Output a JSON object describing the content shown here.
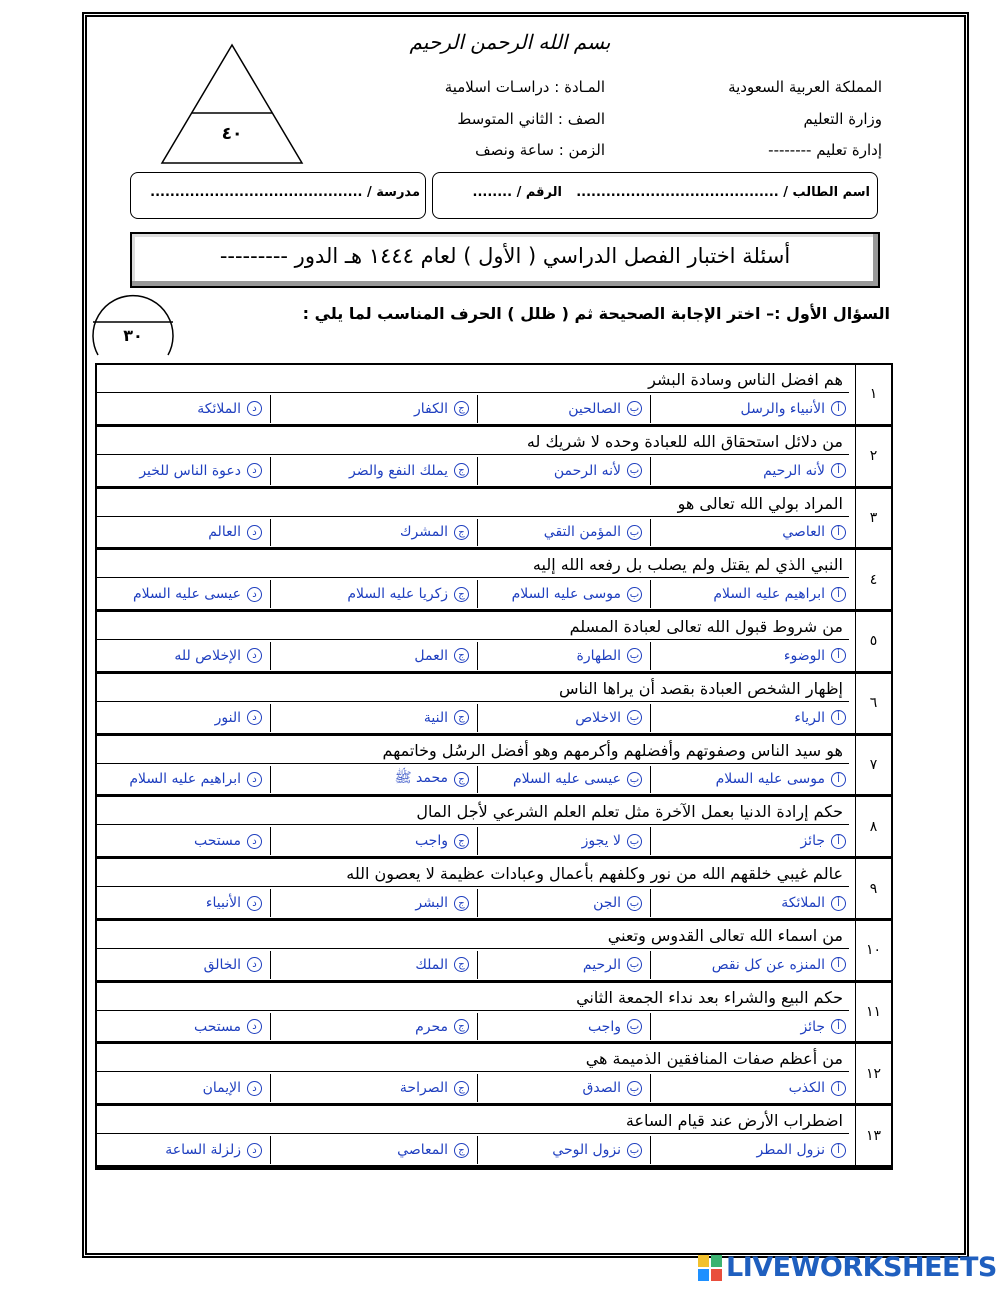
{
  "basmala": "بسم الله الرحمن الرحيم",
  "header": {
    "right": [
      "المملكة العربية السعودية",
      "وزارة التعليم",
      "إدارة تعليم --------"
    ],
    "middle": [
      "المـادة : دراسـات اسلامية",
      "الصف : الثاني المتوسط",
      "الزمن : ساعة ونصف"
    ],
    "total_score": "٤٠"
  },
  "student": {
    "name": "اسم الطالب / .........................................",
    "number": "الرقم / ........",
    "school": "مدرسة / ..........................................."
  },
  "exam_title": "أسئلة اختبار الفصل الدراسي ( الأول ) لعام ١٤٤٤ هـ  الدور ---------",
  "section": {
    "score": "٣٠",
    "heading": "السؤال الأول :– اختر الإجابة الصحيحة ثم ( ظلل ) الحرف المناسب لما يلي :"
  },
  "option_letters": [
    "أ",
    "ب",
    "ج",
    "د"
  ],
  "questions": [
    {
      "number": "١",
      "text": "هم افضل الناس وسادة البشر",
      "options": [
        "الأنبياء والرسل",
        "الصالحين",
        "الكفار",
        "الملائكة"
      ]
    },
    {
      "number": "٢",
      "text": "من دلائل استحقاق الله للعبادة وحده لا شريك له",
      "options": [
        "لأنه الرحيم",
        "لأنه الرحمن",
        "يملك النفع والضر",
        "دعوة الناس للخير"
      ]
    },
    {
      "number": "٣",
      "text": "المراد بولي الله تعالى هو",
      "options": [
        "العاصي",
        "المؤمن التقي",
        "المشرك",
        "العالم"
      ]
    },
    {
      "number": "٤",
      "text": "النبي الذي لم يقتل ولم يصلب بل رفعه الله إليه",
      "options": [
        "ابراهيم عليه السلام",
        "موسى عليه السلام",
        "زكريا عليه السلام",
        "عيسى عليه السلام"
      ]
    },
    {
      "number": "٥",
      "text": "من شروط قبول الله تعالى لعبادة المسلم",
      "options": [
        "الوضوء",
        "الطهارة",
        "العمل",
        "الإخلاص لله"
      ]
    },
    {
      "number": "٦",
      "text": "إظهار الشخص العبادة بقصد أن يراها الناس",
      "options": [
        "الرياء",
        "الاخلاص",
        "النية",
        "النور"
      ]
    },
    {
      "number": "٧",
      "text": "هو سيد الناس وصفوتهم وأفضلهم وأكرمهم وهو أفضل الرسُل وخاتمهم",
      "options": [
        "موسى عليه السلام",
        "عيسى عليه السلام",
        "محمد ﷺ",
        "ابراهيم عليه السلام"
      ]
    },
    {
      "number": "٨",
      "text": "حكم إرادة الدنيا بعمل الآخرة مثل تعلم العلم الشرعي لأجل المال",
      "options": [
        "جائز",
        "لا يجوز",
        "واجب",
        "مستحب"
      ]
    },
    {
      "number": "٩",
      "text": "عالم غيبي خلقهم الله من نور وكلفهم بأعمال وعبادات عظيمة لا يعصون الله",
      "options": [
        "الملائكة",
        "الجن",
        "البشر",
        "الأنبياء"
      ]
    },
    {
      "number": "١٠",
      "text": "من اسماء الله تعالى القدوس وتعني",
      "options": [
        "المنزه عن كل نقص",
        "الرحيم",
        "الملك",
        "الخالق"
      ]
    },
    {
      "number": "١١",
      "text": "حكم البيع والشراء بعد نداء الجمعة الثاني",
      "options": [
        "جائز",
        "واجب",
        "محرم",
        "مستحب"
      ]
    },
    {
      "number": "١٢",
      "text": "من أعظم صفات المنافقين الذميمة هي",
      "options": [
        "الكذب",
        "الصدق",
        "الصراحة",
        "الإيمان"
      ]
    },
    {
      "number": "١٣",
      "text": "اضطراب الأرض عند قيام الساعة",
      "options": [
        "نزول المطر",
        "نزول الوحي",
        "المعاصي",
        "زلزلة الساعة"
      ]
    }
  ],
  "footer": {
    "brand": "LIVEWORKSHEETS"
  }
}
